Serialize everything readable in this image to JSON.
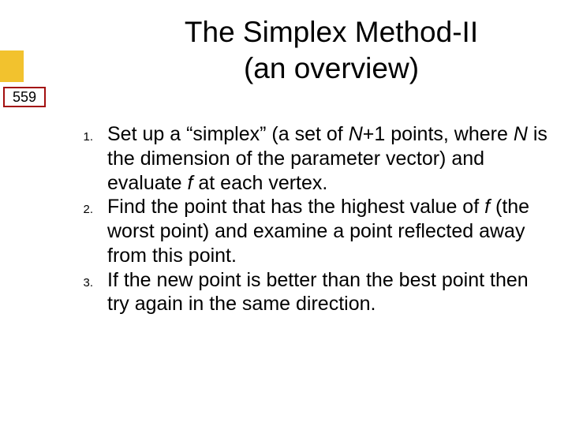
{
  "page_number": "559",
  "title": {
    "line1": "The Simplex Method-II",
    "line2": "(an overview)"
  },
  "items": [
    {
      "num": "1.",
      "parts": [
        {
          "t": "Set up a “simplex” (a set of "
        },
        {
          "t": "N",
          "italic": true
        },
        {
          "t": "+1 points, where "
        },
        {
          "t": "N",
          "italic": true
        },
        {
          "t": " is the dimension of the parameter vector) and evaluate "
        },
        {
          "t": "f",
          "italic": true
        },
        {
          "t": " at each vertex."
        }
      ]
    },
    {
      "num": "2.",
      "parts": [
        {
          "t": "Find the point that has the highest value of "
        },
        {
          "t": "f",
          "italic": true
        },
        {
          "t": " (the worst point) and examine a point reflected away from this point."
        }
      ]
    },
    {
      "num": "3.",
      "parts": [
        {
          "t": "If the new point is better than the best point then try again in the same direction."
        }
      ]
    }
  ],
  "style": {
    "title_fontsize": 37,
    "body_fontsize": 25,
    "num_fontsize": 15,
    "title_color": "#000000",
    "body_color": "#000000",
    "badge_border_color": "#a30f0f",
    "badge_fill_color": "#f2c22e",
    "background": "#ffffff"
  }
}
